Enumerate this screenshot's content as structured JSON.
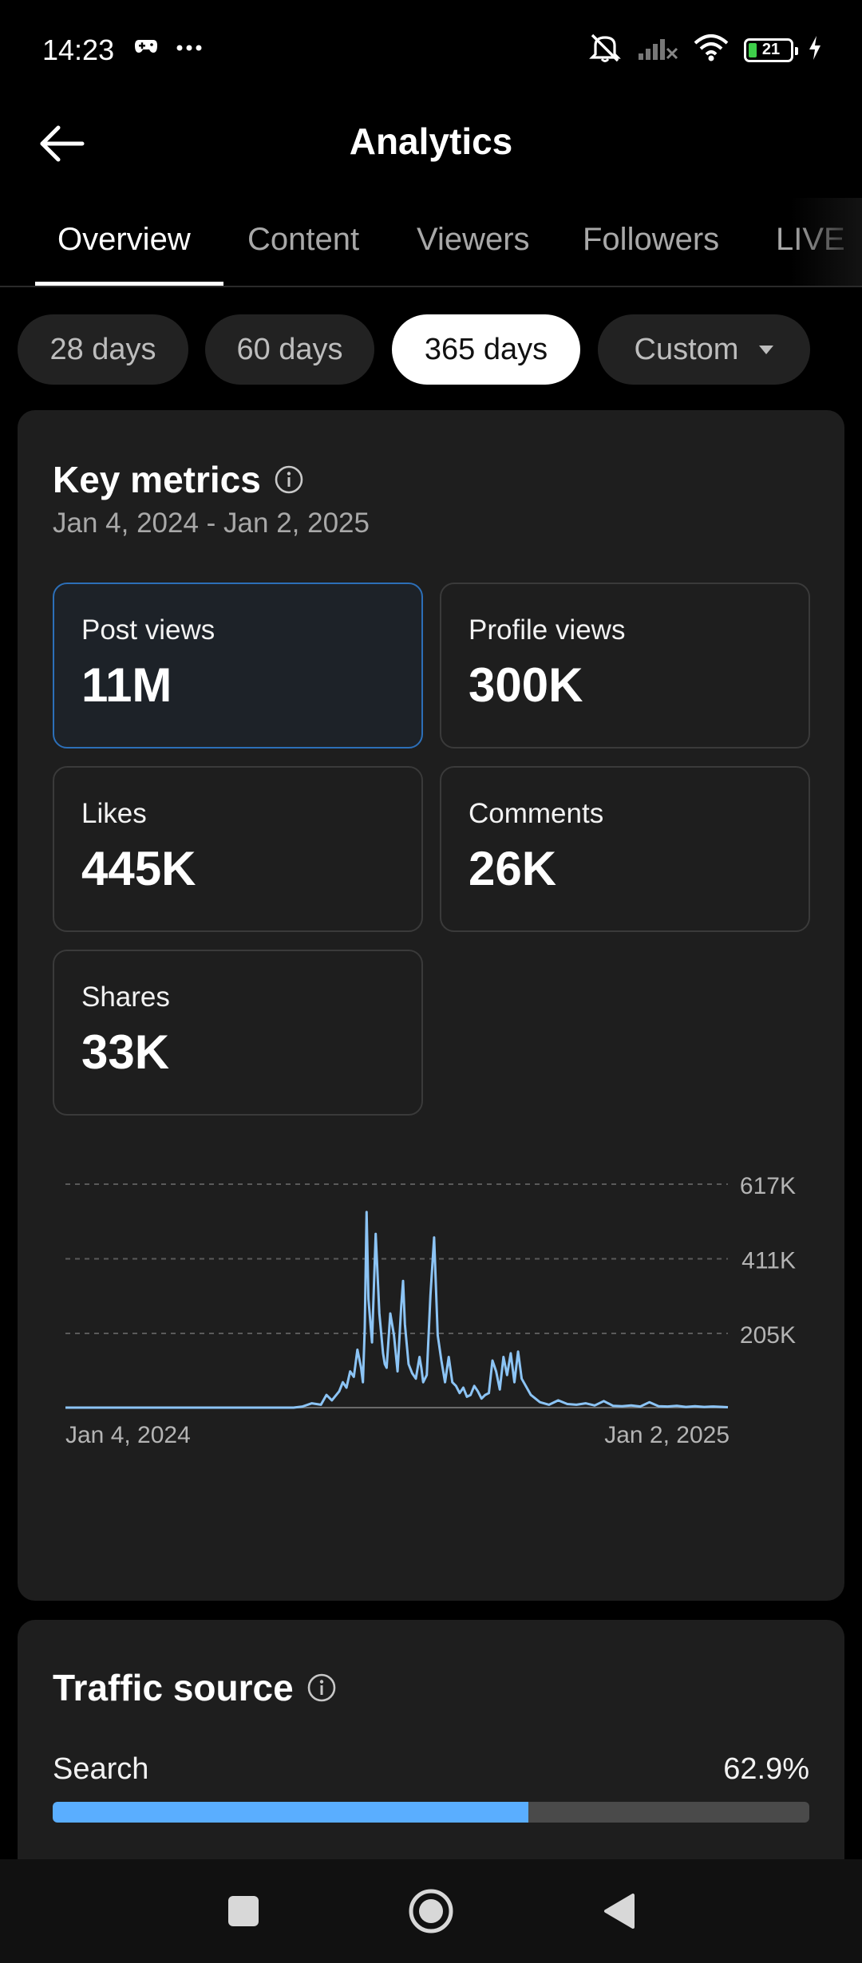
{
  "status_bar": {
    "time": "14:23",
    "battery_level": "21",
    "icons": [
      "gamepad-icon",
      "more-dots-icon",
      "mute-icon",
      "signal-icon",
      "wifi-icon",
      "battery-icon",
      "charging-icon"
    ]
  },
  "header": {
    "title": "Analytics"
  },
  "tabs": [
    {
      "label": "Overview",
      "active": true
    },
    {
      "label": "Content",
      "active": false
    },
    {
      "label": "Viewers",
      "active": false
    },
    {
      "label": "Followers",
      "active": false
    },
    {
      "label": "LIVE",
      "active": false
    }
  ],
  "periods": [
    {
      "label": "28 days",
      "active": false
    },
    {
      "label": "60 days",
      "active": false
    },
    {
      "label": "365 days",
      "active": true
    },
    {
      "label": "Custom",
      "active": false
    }
  ],
  "key_metrics": {
    "title": "Key metrics",
    "date_range": "Jan 4, 2024 - Jan 2, 2025",
    "metrics": [
      {
        "label": "Post views",
        "value": "11M",
        "selected": true
      },
      {
        "label": "Profile views",
        "value": "300K",
        "selected": false
      },
      {
        "label": "Likes",
        "value": "445K",
        "selected": false
      },
      {
        "label": "Comments",
        "value": "26K",
        "selected": false
      },
      {
        "label": "Shares",
        "value": "33K",
        "selected": false
      }
    ]
  },
  "chart_data": {
    "type": "line",
    "x_start_label": "Jan 4, 2024",
    "x_end_label": "Jan 2, 2025",
    "ylim": [
      0,
      617000
    ],
    "y_ticks": [
      {
        "value": 617000,
        "label": "617K"
      },
      {
        "value": 411000,
        "label": "411K"
      },
      {
        "value": 205000,
        "label": "205K"
      }
    ],
    "grid": true,
    "series_color": "#8cc4f5",
    "x": [
      0,
      50,
      100,
      110,
      125,
      130,
      135,
      140,
      143,
      146,
      150,
      152,
      154,
      156,
      158,
      160,
      162,
      163,
      164,
      165,
      166,
      168,
      170,
      172,
      174,
      175,
      176,
      178,
      180,
      182,
      184,
      185,
      186,
      188,
      190,
      192,
      194,
      195,
      196,
      198,
      200,
      202,
      204,
      206,
      208,
      210,
      212,
      214,
      216,
      218,
      220,
      222,
      224,
      226,
      228,
      230,
      232,
      234,
      236,
      238,
      240,
      242,
      244,
      246,
      248,
      250,
      255,
      260,
      265,
      270,
      275,
      280,
      285,
      290,
      295,
      300,
      305,
      310,
      315,
      320,
      325,
      330,
      335,
      340,
      345,
      350,
      355,
      360,
      363
    ],
    "values": [
      0,
      0,
      0,
      0,
      0,
      3000,
      12000,
      8000,
      35000,
      20000,
      45000,
      70000,
      55000,
      100000,
      85000,
      160000,
      110000,
      70000,
      220000,
      540000,
      300000,
      180000,
      480000,
      260000,
      150000,
      120000,
      110000,
      260000,
      200000,
      100000,
      280000,
      350000,
      230000,
      120000,
      95000,
      80000,
      140000,
      110000,
      70000,
      90000,
      310000,
      470000,
      200000,
      130000,
      70000,
      140000,
      70000,
      60000,
      40000,
      55000,
      30000,
      35000,
      60000,
      45000,
      25000,
      35000,
      40000,
      130000,
      100000,
      50000,
      140000,
      90000,
      150000,
      70000,
      155000,
      80000,
      35000,
      15000,
      8000,
      20000,
      10000,
      8000,
      12000,
      6000,
      18000,
      5000,
      4000,
      6000,
      3000,
      15000,
      4000,
      3000,
      5000,
      2000,
      4000,
      2000,
      3000,
      2000,
      1000
    ]
  },
  "traffic_source": {
    "title": "Traffic source",
    "items": [
      {
        "label": "Search",
        "value": "62.9%",
        "fraction": 0.629
      }
    ]
  },
  "navbar": {
    "icons": [
      "recents-square-icon",
      "home-circle-icon",
      "back-triangle-icon"
    ]
  }
}
